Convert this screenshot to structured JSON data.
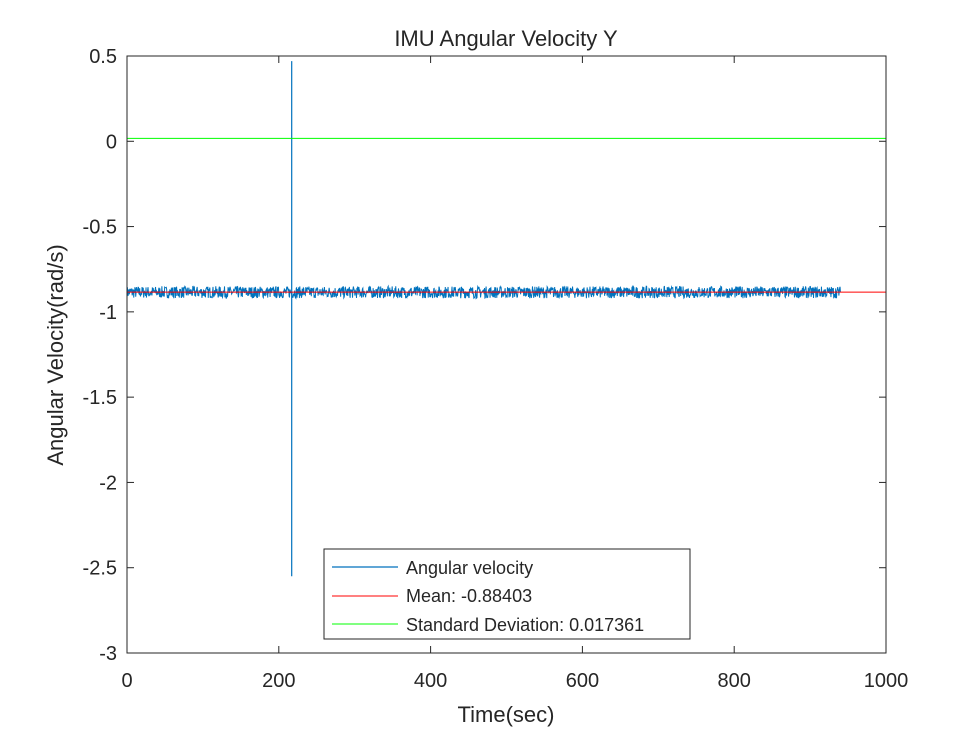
{
  "chart_data": {
    "type": "line",
    "title": "IMU Angular Velocity Y",
    "xlabel": "Time(sec)",
    "ylabel": "Angular Velocity(rad/s)",
    "xlim": [
      0,
      1000
    ],
    "ylim": [
      -3,
      0.5
    ],
    "xticks": [
      0,
      200,
      400,
      600,
      800,
      1000
    ],
    "xtick_labels": [
      "0",
      "200",
      "400",
      "600",
      "800",
      "1000"
    ],
    "yticks": [
      -3,
      -2.5,
      -2,
      -1.5,
      -1,
      -0.5,
      0,
      0.5
    ],
    "ytick_labels": [
      "-3",
      "-2.5",
      "-2",
      "-1.5",
      "-1",
      "-0.5",
      "0",
      "0.5"
    ],
    "grid": false,
    "legend_position": "bottom-center",
    "series": [
      {
        "name": "Angular velocity",
        "color": "#0072BD",
        "noise_band": {
          "x": [
            0,
            940
          ],
          "center": -0.885,
          "min": -0.92,
          "max": -0.85
        },
        "spike": {
          "x": 217,
          "max": 0.47,
          "min": -2.55
        }
      },
      {
        "name": "Mean: -0.88403",
        "color": "#ff0000",
        "x": [
          0,
          1000
        ],
        "y": [
          -0.88403,
          -0.88403
        ]
      },
      {
        "name": "Standard Deviation: 0.017361",
        "color": "#00ff00",
        "x": [
          0,
          1000
        ],
        "y": [
          0.017361,
          0.017361
        ]
      }
    ]
  }
}
